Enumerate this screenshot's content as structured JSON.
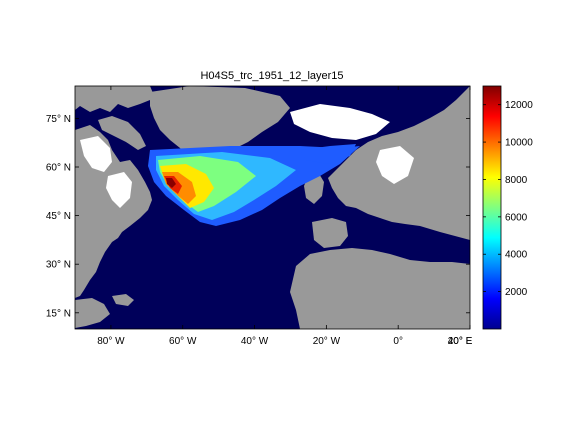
{
  "title": "H04S5_trc_1951_12_layer15",
  "map": {
    "lon_range": [
      -90,
      20
    ],
    "lat_range": [
      10,
      85
    ],
    "lat_ticks": [
      {
        "value": 75,
        "label": "75° N"
      },
      {
        "value": 60,
        "label": "60° N"
      },
      {
        "value": 45,
        "label": "45° N"
      },
      {
        "value": 30,
        "label": "30° N"
      },
      {
        "value": 15,
        "label": "15° N"
      }
    ],
    "lon_ticks": [
      {
        "value": -80,
        "label": "80° W"
      },
      {
        "value": -60,
        "label": "60° W"
      },
      {
        "value": -40,
        "label": "40° W"
      },
      {
        "value": -20,
        "label": "20° W"
      },
      {
        "value": 0,
        "label": "0°"
      },
      {
        "value": 20,
        "label": "20° E"
      },
      {
        "value": 40,
        "label": "40° E"
      }
    ]
  },
  "colorbar": {
    "range": [
      0,
      13000
    ],
    "ticks": [
      {
        "value": 2000,
        "label": "2000"
      },
      {
        "value": 4000,
        "label": "4000"
      },
      {
        "value": 6000,
        "label": "6000"
      },
      {
        "value": 8000,
        "label": "8000"
      },
      {
        "value": 10000,
        "label": "10000"
      },
      {
        "value": 12000,
        "label": "12000"
      }
    ]
  },
  "colors": {
    "ocean_low": "#00005a",
    "land": "#999999",
    "missing": "#ffffff"
  }
}
